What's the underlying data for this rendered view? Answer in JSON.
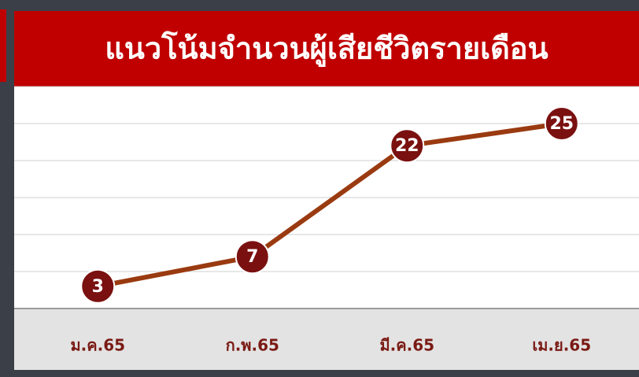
{
  "chart_data": {
    "type": "line",
    "title": "แนวโน้มจำนวนผู้เสียชีวิตรายเดือน",
    "categories": [
      "ม.ค.65",
      "ก.พ.65",
      "มี.ค.65",
      "เม.ย.65"
    ],
    "values": [
      3,
      7,
      22,
      25
    ],
    "color": "#9a3a10",
    "ylim": [
      0,
      30
    ],
    "yticks": [
      0,
      5,
      10,
      15,
      20,
      25,
      30
    ],
    "grid": true
  }
}
